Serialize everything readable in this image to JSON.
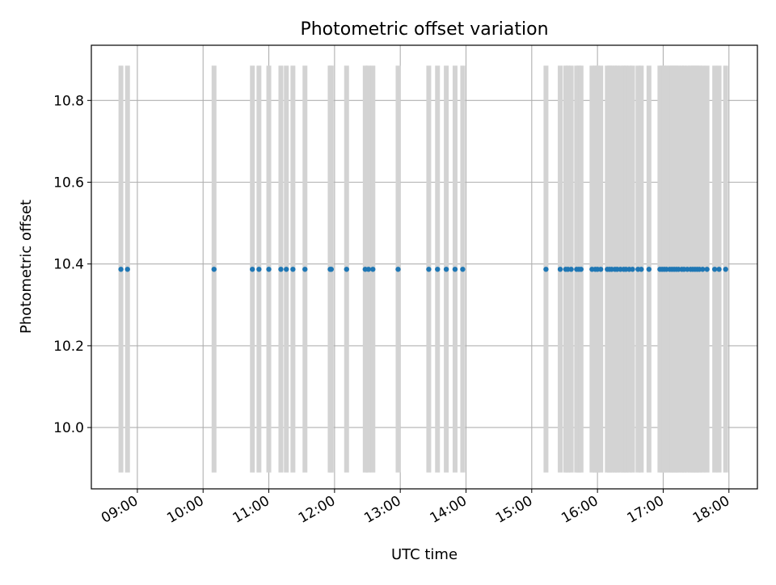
{
  "chart_data": {
    "type": "scatter",
    "title": "Photometric offset variation",
    "xlabel": "UTC time",
    "ylabel": "Photometric offset",
    "xlim": [
      "08:18",
      "18:26"
    ],
    "ylim": [
      9.85,
      10.935
    ],
    "x_ticks": [
      "09:00",
      "10:00",
      "11:00",
      "12:00",
      "13:00",
      "14:00",
      "15:00",
      "16:00",
      "17:00",
      "18:00"
    ],
    "y_ticks": [
      10.0,
      10.2,
      10.4,
      10.6,
      10.8
    ],
    "y_tick_labels": [
      "10.0",
      "10.2",
      "10.4",
      "10.6",
      "10.8"
    ],
    "grid": true,
    "legend": "none",
    "colors": {
      "points": "#1f77b4",
      "error_bars": "#d3d3d3",
      "grid": "#b0b0b0",
      "axes": "#000000"
    },
    "error_range": [
      9.89,
      10.885
    ],
    "series": [
      {
        "x": [
          "08:45",
          "08:51",
          "10:10",
          "10:45",
          "10:51",
          "11:00",
          "11:11",
          "11:16",
          "11:22",
          "11:33",
          "11:56",
          "11:57",
          "12:11",
          "12:28",
          "12:31",
          "12:35",
          "12:58",
          "13:26",
          "13:34",
          "13:42",
          "13:50",
          "13:57",
          "15:13",
          "15:26",
          "15:31",
          "15:33",
          "15:36",
          "15:41",
          "15:43",
          "15:45",
          "15:55",
          "15:58",
          "16:00",
          "16:03",
          "16:09",
          "16:11",
          "16:13",
          "16:16",
          "16:18",
          "16:21",
          "16:24",
          "16:26",
          "16:29",
          "16:32",
          "16:37",
          "16:40",
          "16:47",
          "16:57",
          "16:59",
          "17:01",
          "17:03",
          "17:06",
          "17:08",
          "17:10",
          "17:12",
          "17:14",
          "17:17",
          "17:19",
          "17:22",
          "17:25",
          "17:27",
          "17:29",
          "17:31",
          "17:33",
          "17:36",
          "17:40",
          "17:47",
          "17:51",
          "17:57"
        ],
        "y": [
          10.387,
          10.387,
          10.387,
          10.387,
          10.387,
          10.387,
          10.387,
          10.387,
          10.387,
          10.387,
          10.387,
          10.387,
          10.387,
          10.387,
          10.387,
          10.387,
          10.387,
          10.387,
          10.387,
          10.387,
          10.387,
          10.387,
          10.387,
          10.387,
          10.387,
          10.387,
          10.387,
          10.387,
          10.387,
          10.387,
          10.387,
          10.387,
          10.387,
          10.387,
          10.387,
          10.387,
          10.387,
          10.387,
          10.387,
          10.387,
          10.387,
          10.387,
          10.387,
          10.387,
          10.387,
          10.387,
          10.387,
          10.387,
          10.387,
          10.387,
          10.387,
          10.387,
          10.387,
          10.387,
          10.387,
          10.387,
          10.387,
          10.387,
          10.387,
          10.387,
          10.387,
          10.387,
          10.387,
          10.387,
          10.387,
          10.387,
          10.387,
          10.387,
          10.387
        ]
      }
    ]
  }
}
